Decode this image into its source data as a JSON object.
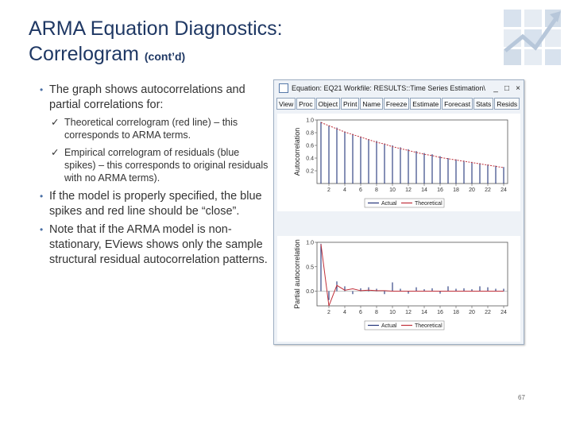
{
  "slide": {
    "title_line1": "ARMA Equation Diagnostics:",
    "title_line2": "Correlogram",
    "title_suffix": "(cont’d)",
    "page_number": "67"
  },
  "bullets": {
    "b1": "The graph shows autocorrelations and partial correlations for:",
    "s1": "Theoretical correlogram (red line) – this corresponds to ARMA terms.",
    "s2": "Empirical correlogram of residuals (blue spikes) – this corresponds to original residuals with no ARMA terms).",
    "b2": "If the model is properly specified, the blue spikes and red line should be “close”.",
    "b3": "Note that if the ARMA model is non-stationary, EViews shows only the sample structural residual autocorrelation patterns."
  },
  "window": {
    "title": "Equation: EQ21   Workfile: RESULTS::Time Series Estimation\\",
    "minimize": "_",
    "maximize": "□",
    "close": "×",
    "toolbar": [
      "View",
      "Proc",
      "Object",
      "Print",
      "Name",
      "Freeze",
      "Estimate",
      "Forecast",
      "Stats",
      "Resids"
    ]
  },
  "colors": {
    "theoretical": "#c0303a",
    "actual": "#24357a",
    "title": "#1f3864"
  },
  "chart_data": [
    {
      "type": "bar",
      "ylabel": "Autocorrelation",
      "ylim": [
        0,
        1.0
      ],
      "yticks": [
        "1.0",
        "0.8",
        "0.6",
        "0.4",
        "0.2"
      ],
      "x": [
        1,
        2,
        3,
        4,
        5,
        6,
        7,
        8,
        9,
        10,
        11,
        12,
        13,
        14,
        15,
        16,
        17,
        18,
        19,
        20,
        21,
        22,
        23,
        24
      ],
      "xticks": [
        "2",
        "4",
        "6",
        "8",
        "10",
        "12",
        "14",
        "16",
        "18",
        "20",
        "22",
        "24"
      ],
      "series": [
        {
          "name": "Actual",
          "values": [
            0.97,
            0.91,
            0.88,
            0.82,
            0.78,
            0.74,
            0.7,
            0.67,
            0.63,
            0.6,
            0.57,
            0.54,
            0.51,
            0.48,
            0.46,
            0.43,
            0.4,
            0.38,
            0.36,
            0.34,
            0.32,
            0.3,
            0.28,
            0.26
          ]
        },
        {
          "name": "Theoretical",
          "values": [
            0.96,
            0.91,
            0.86,
            0.81,
            0.77,
            0.73,
            0.69,
            0.65,
            0.62,
            0.58,
            0.55,
            0.52,
            0.49,
            0.46,
            0.44,
            0.41,
            0.39,
            0.37,
            0.35,
            0.33,
            0.31,
            0.29,
            0.27,
            0.25
          ]
        }
      ],
      "legend": "bottom"
    },
    {
      "type": "bar",
      "ylabel": "Partial autocorrelation",
      "ylim": [
        -0.3,
        1.0
      ],
      "yticks": [
        "1.0",
        "0.5",
        "0.0"
      ],
      "x": [
        1,
        2,
        3,
        4,
        5,
        6,
        7,
        8,
        9,
        10,
        11,
        12,
        13,
        14,
        15,
        16,
        17,
        18,
        19,
        20,
        21,
        22,
        23,
        24
      ],
      "xticks": [
        "2",
        "4",
        "6",
        "8",
        "10",
        "12",
        "14",
        "16",
        "18",
        "20",
        "22",
        "24"
      ],
      "series": [
        {
          "name": "Actual",
          "values": [
            0.97,
            -0.18,
            0.2,
            0.1,
            -0.06,
            0.06,
            0.08,
            0.05,
            -0.06,
            0.18,
            0.05,
            -0.05,
            0.08,
            0.04,
            0.06,
            -0.05,
            0.1,
            0.05,
            0.06,
            0.04,
            0.1,
            0.08,
            0.05,
            0.05
          ]
        },
        {
          "name": "Theoretical",
          "values": [
            0.96,
            -0.3,
            0.12,
            0.02,
            0.05,
            0.01,
            0.02,
            0.01,
            0.01,
            0.0,
            0.0,
            0.0,
            0.0,
            0.0,
            0.0,
            0.0,
            0.0,
            0.0,
            0.0,
            0.0,
            0.0,
            0.0,
            0.0,
            0.0
          ]
        }
      ],
      "legend": "bottom"
    }
  ]
}
